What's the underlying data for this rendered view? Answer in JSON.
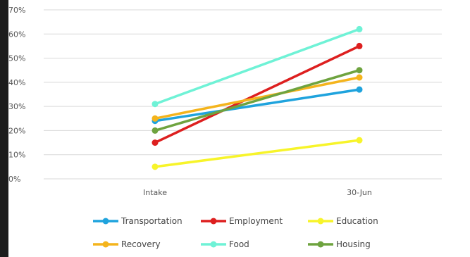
{
  "chart_data": {
    "type": "line",
    "title": "",
    "xlabel": "",
    "ylabel": "",
    "categories": [
      "Intake",
      "30-Jun"
    ],
    "ylim": [
      0,
      0.7
    ],
    "yticks": [
      "0%",
      "10%",
      "20%",
      "30%",
      "40%",
      "50%",
      "60%",
      "70%"
    ],
    "grid": true,
    "legend_position": "bottom",
    "series": [
      {
        "name": "Transportation",
        "color": "#1fa3dd",
        "values": [
          0.24,
          0.37
        ]
      },
      {
        "name": "Employment",
        "color": "#dd1f1f",
        "values": [
          0.15,
          0.55
        ]
      },
      {
        "name": "Education",
        "color": "#f7f42a",
        "values": [
          0.05,
          0.16
        ]
      },
      {
        "name": "Recovery",
        "color": "#f4b41c",
        "values": [
          0.25,
          0.42
        ]
      },
      {
        "name": "Food",
        "color": "#6ff2d6",
        "values": [
          0.31,
          0.62
        ]
      },
      {
        "name": "Housing",
        "color": "#6ea33f",
        "values": [
          0.2,
          0.45
        ]
      }
    ]
  }
}
